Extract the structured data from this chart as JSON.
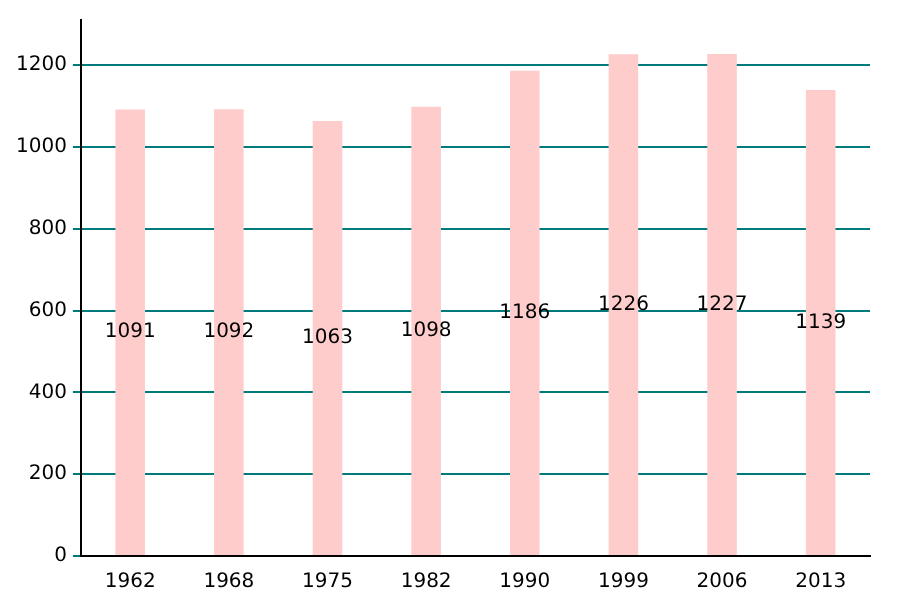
{
  "chart_data": {
    "type": "bar",
    "categories": [
      "1962",
      "1968",
      "1975",
      "1982",
      "1990",
      "1999",
      "2006",
      "2013"
    ],
    "values": [
      1091,
      1092,
      1063,
      1098,
      1186,
      1226,
      1227,
      1139
    ],
    "color": "#ffcccc",
    "ylim": [
      0,
      1310
    ],
    "yticks": [
      0,
      200,
      400,
      600,
      800,
      1000,
      1200
    ],
    "grid": "y",
    "data_labels": true,
    "legend": false
  }
}
